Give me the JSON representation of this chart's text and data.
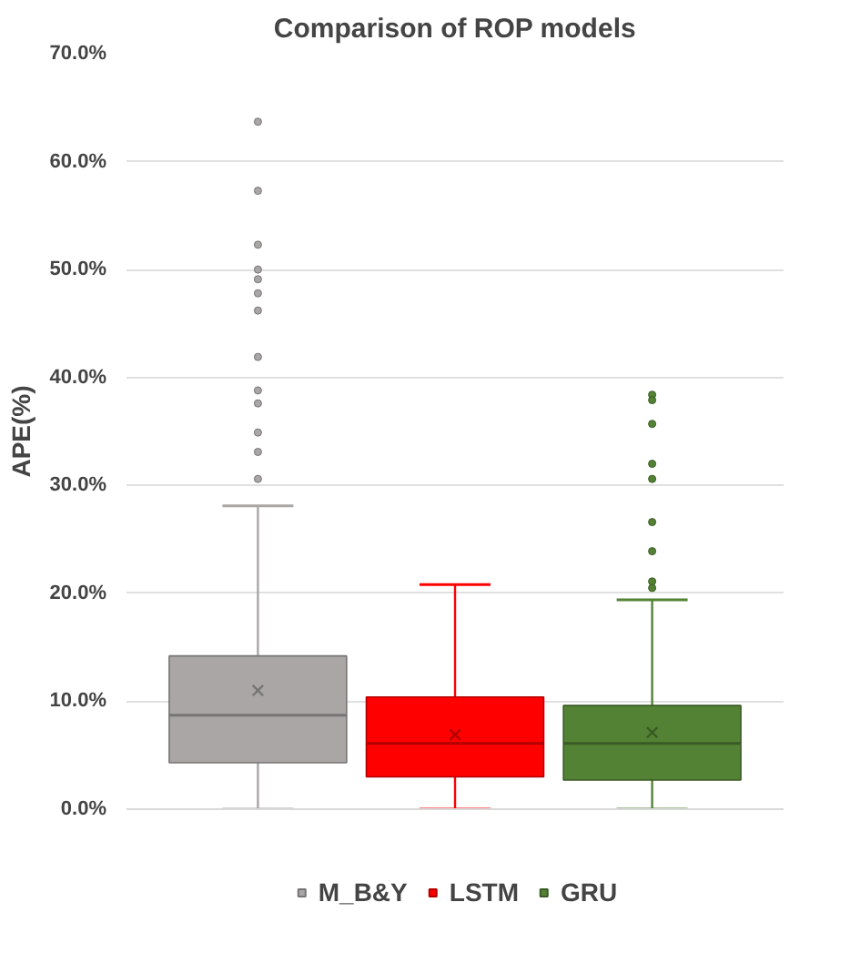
{
  "chart_data": {
    "type": "box",
    "title": "Comparison of ROP models",
    "ylabel": "APE(%)",
    "categories": [
      null
    ],
    "series": [
      {
        "name": "M_B&Y",
        "color": "#aaa6a6",
        "boxes": [
          {
            "low": 0,
            "q1": 4.3,
            "median": 8.7,
            "q3": 14.2,
            "high": 28.1,
            "mean": 11.0,
            "outliers": [
              63.7,
              57.3,
              52.3,
              50.0,
              49.1,
              47.8,
              46.2,
              41.9,
              38.8,
              37.6,
              34.9,
              33.1,
              30.6
            ]
          }
        ]
      },
      {
        "name": "LSTM",
        "color": "#ff0000",
        "boxes": [
          {
            "low": 0,
            "q1": 3.0,
            "median": 6.1,
            "q3": 10.4,
            "high": 20.8,
            "mean": 6.9
          }
        ]
      },
      {
        "name": "GRU",
        "color": "#548235",
        "boxes": [
          {
            "low": 0,
            "q1": 2.7,
            "median": 6.1,
            "q3": 9.6,
            "high": 19.4,
            "mean": 7.1,
            "outliers": [
              38.4,
              37.9,
              35.7,
              32.0,
              30.6,
              26.6,
              23.9,
              21.1,
              20.5
            ]
          }
        ]
      }
    ],
    "ylim": [
      0,
      70
    ],
    "yticks": [
      {
        "value": 0,
        "label": "0.0%"
      },
      {
        "value": 10,
        "label": "10.0%"
      },
      {
        "value": 20,
        "label": "20.0%"
      },
      {
        "value": 30,
        "label": "30.0%"
      },
      {
        "value": 40,
        "label": "40.0%"
      },
      {
        "value": 50,
        "label": "50.0%"
      },
      {
        "value": 60,
        "label": "60.0%"
      },
      {
        "value": 70,
        "label": "70.0%"
      }
    ],
    "grid": "y",
    "legend": "bottom",
    "tick_labels": "y"
  }
}
